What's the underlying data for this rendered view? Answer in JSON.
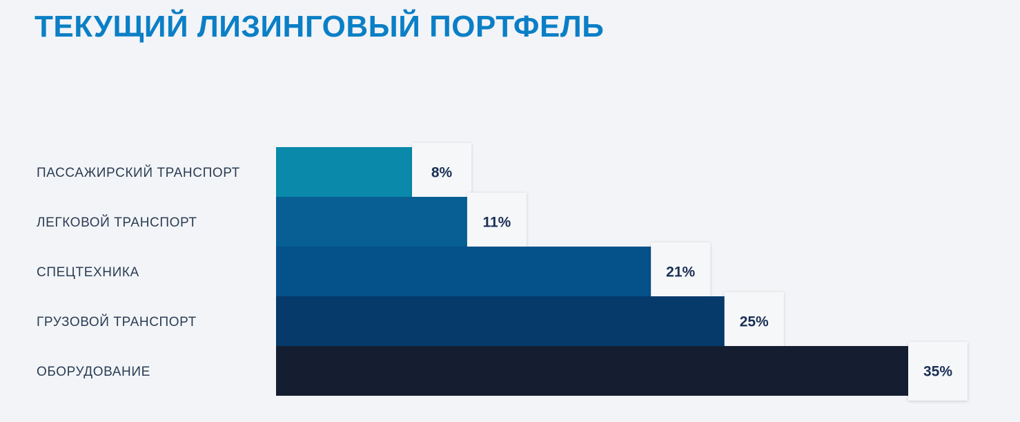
{
  "title": "ТЕКУЩИЙ ЛИЗИНГОВЫЙ ПОРТФЕЛЬ",
  "chart_data": {
    "type": "bar",
    "orientation": "horizontal",
    "categories": [
      "ПАССАЖИРСКИЙ ТРАНСПОРТ",
      "ЛЕГКОВОЙ ТРАНСПОРТ",
      "СПЕЦТЕХНИКА",
      "ГРУЗОВОЙ ТРАНСПОРТ",
      "ОБОРУДОВАНИЕ"
    ],
    "values": [
      8,
      11,
      21,
      25,
      35
    ],
    "value_labels": [
      "8%",
      "11%",
      "21%",
      "25%",
      "35%"
    ],
    "colors": [
      "#0a89ab",
      "#075f94",
      "#05518a",
      "#053a6b",
      "#151e31"
    ],
    "xlabel": "",
    "ylabel": "",
    "grid": false,
    "legend": "none"
  }
}
